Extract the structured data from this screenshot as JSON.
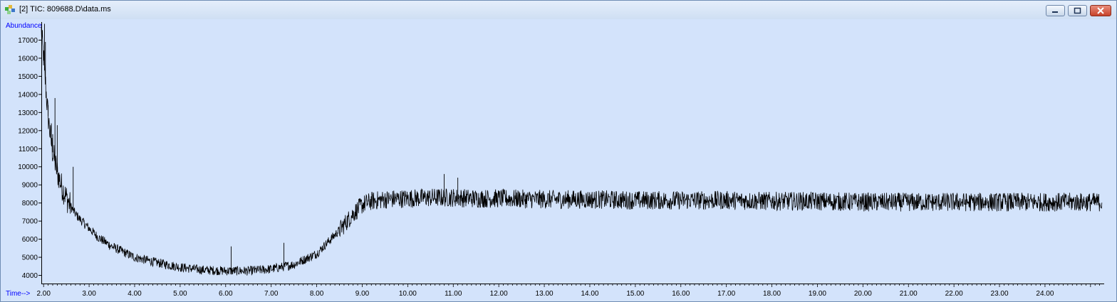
{
  "window": {
    "title": "[2] TIC: 809688.D\\data.ms",
    "minimize_label": "",
    "maximize_label": "",
    "close_label": ""
  },
  "colors": {
    "plot_background": "#d3e3fb",
    "axis_label_color": "#0000ff",
    "trace_color": "#000000"
  },
  "chart_data": {
    "type": "line",
    "title": "",
    "xlabel": "Time-->",
    "ylabel": "Abundance",
    "xlim": [
      1.95,
      25.3
    ],
    "ylim": [
      3550,
      18000
    ],
    "x_ticks": [
      "2.00",
      "3.00",
      "4.00",
      "5.00",
      "6.00",
      "7.00",
      "8.00",
      "9.00",
      "10.00",
      "11.00",
      "12.00",
      "13.00",
      "14.00",
      "15.00",
      "16.00",
      "17.00",
      "18.00",
      "19.00",
      "20.00",
      "21.00",
      "22.00",
      "23.00",
      "24.00"
    ],
    "y_ticks": [
      "4000",
      "5000",
      "6000",
      "7000",
      "8000",
      "9000",
      "10000",
      "11000",
      "12000",
      "13000",
      "14000",
      "15000",
      "16000",
      "17000"
    ],
    "grid": false,
    "legend": "none",
    "series": [
      {
        "x": [
          1.95,
          2.0,
          2.05,
          2.1,
          2.15,
          2.2,
          2.3,
          2.4,
          2.5,
          2.6,
          2.7,
          2.8,
          3.0,
          3.2,
          3.5,
          4.0,
          4.5,
          5.0,
          5.5,
          6.0,
          6.5,
          7.0,
          7.5,
          8.0,
          8.5,
          8.8,
          9.0,
          9.2,
          9.5,
          10.0,
          10.5,
          11.0,
          11.5,
          12.0,
          13.0,
          14.0,
          15.0,
          16.0,
          17.0,
          18.0,
          19.0,
          20.0,
          21.0,
          22.0,
          23.0,
          24.0,
          25.3
        ],
        "y": [
          17500,
          16000,
          14300,
          12800,
          11700,
          10800,
          9700,
          8900,
          8300,
          7800,
          7400,
          7100,
          6600,
          6100,
          5600,
          5000,
          4700,
          4450,
          4300,
          4250,
          4250,
          4350,
          4600,
          5200,
          6500,
          7400,
          7900,
          8100,
          8200,
          8250,
          8300,
          8300,
          8250,
          8250,
          8200,
          8200,
          8150,
          8150,
          8150,
          8100,
          8100,
          8050,
          8050,
          8050,
          8050,
          8050,
          8050
        ]
      }
    ],
    "spikes": [
      {
        "x": 2.02,
        "y": 17900
      },
      {
        "x": 2.04,
        "y": 16900
      },
      {
        "x": 2.1,
        "y": 13400
      },
      {
        "x": 2.17,
        "y": 12400
      },
      {
        "x": 2.2,
        "y": 11800
      },
      {
        "x": 2.25,
        "y": 13800
      },
      {
        "x": 2.3,
        "y": 12300
      },
      {
        "x": 2.65,
        "y": 10000
      },
      {
        "x": 6.12,
        "y": 5600
      },
      {
        "x": 7.28,
        "y": 5800
      },
      {
        "x": 10.8,
        "y": 9600
      },
      {
        "x": 11.1,
        "y": 9400
      }
    ],
    "noise": {
      "base_amplitude": 260,
      "plateau_amplitude": 520
    }
  }
}
